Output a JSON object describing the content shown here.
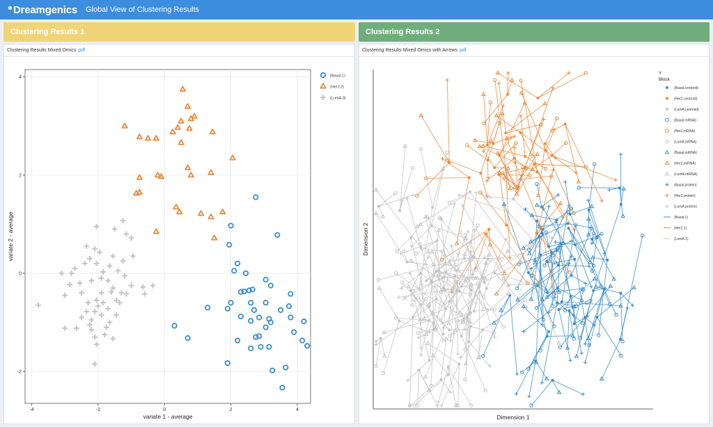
{
  "header": {
    "brand": "Dreamgenics",
    "title": "Global View of Clustering Results"
  },
  "panels": [
    {
      "title": "Clustering Results 1",
      "subtitle": "Clustering Results Mixed Omics",
      "link": "pdf"
    },
    {
      "title": "Clustering Results 2",
      "subtitle": "Clustering Results Mixed Omics with Arrows",
      "link": "pdf"
    }
  ],
  "colors": {
    "basal": "#3a8dc8",
    "her2": "#e8893a",
    "luma": "#c4c4c4",
    "header": "#3c8dde",
    "panel1": "#f0d578",
    "panel2": "#6fae7c"
  },
  "chart_data": [
    {
      "type": "scatter",
      "xlabel": "variate 1 - average",
      "ylabel": "variate 2 - average",
      "xlim": [
        -4.2,
        4.4
      ],
      "ylim": [
        -2.65,
        4.15
      ],
      "xticks": [
        -4,
        -2,
        0,
        2,
        4
      ],
      "yticks": [
        -2,
        0,
        2,
        4
      ],
      "grid": true,
      "legend_position": "right",
      "legend": [
        "(Basal.1)",
        "(Her2.2)",
        "(LumA.3)"
      ],
      "series": [
        {
          "name": "(Basal.1)",
          "marker": "circle",
          "points": [
            [
              2.75,
              1.55
            ],
            [
              2.0,
              0.97
            ],
            [
              3.4,
              0.78
            ],
            [
              1.95,
              0.58
            ],
            [
              2.2,
              0.2
            ],
            [
              2.1,
              0.05
            ],
            [
              2.45,
              0.0
            ],
            [
              3.05,
              -0.13
            ],
            [
              3.2,
              -0.25
            ],
            [
              2.65,
              -0.33
            ],
            [
              2.55,
              -0.35
            ],
            [
              2.4,
              -0.37
            ],
            [
              2.3,
              -0.38
            ],
            [
              3.8,
              -0.42
            ],
            [
              2.0,
              -0.6
            ],
            [
              2.6,
              -0.6
            ],
            [
              3.05,
              -0.6
            ],
            [
              1.3,
              -0.7
            ],
            [
              3.75,
              -0.67
            ],
            [
              1.9,
              -0.72
            ],
            [
              2.7,
              -0.75
            ],
            [
              3.5,
              -0.75
            ],
            [
              2.3,
              -0.88
            ],
            [
              2.85,
              -0.9
            ],
            [
              3.8,
              -0.9
            ],
            [
              3.15,
              -0.93
            ],
            [
              2.6,
              -0.97
            ],
            [
              3.2,
              -1.0
            ],
            [
              4.2,
              -0.98
            ],
            [
              0.3,
              -1.07
            ],
            [
              3.05,
              -1.1
            ],
            [
              3.9,
              -1.2
            ],
            [
              2.85,
              -1.28
            ],
            [
              2.75,
              -1.3
            ],
            [
              0.7,
              -1.32
            ],
            [
              2.2,
              -1.37
            ],
            [
              4.15,
              -1.37
            ],
            [
              4.3,
              -1.48
            ],
            [
              3.15,
              -1.5
            ],
            [
              2.9,
              -1.5
            ],
            [
              2.6,
              -1.53
            ],
            [
              1.9,
              -1.83
            ],
            [
              3.65,
              -1.92
            ],
            [
              3.25,
              -1.98
            ],
            [
              3.55,
              -2.33
            ]
          ]
        },
        {
          "name": "(Her2.2)",
          "marker": "triangle",
          "points": [
            [
              0.55,
              3.75
            ],
            [
              0.7,
              3.4
            ],
            [
              0.9,
              3.2
            ],
            [
              0.5,
              3.1
            ],
            [
              0.8,
              3.15
            ],
            [
              -1.2,
              3.0
            ],
            [
              0.4,
              2.97
            ],
            [
              0.75,
              2.95
            ],
            [
              0.25,
              2.88
            ],
            [
              -0.75,
              2.78
            ],
            [
              -0.5,
              2.75
            ],
            [
              -0.25,
              2.75
            ],
            [
              1.45,
              2.88
            ],
            [
              0.5,
              2.66
            ],
            [
              2.05,
              2.35
            ],
            [
              0.7,
              2.15
            ],
            [
              -0.2,
              2.0
            ],
            [
              0.8,
              2.0
            ],
            [
              -0.1,
              1.97
            ],
            [
              1.4,
              2.05
            ],
            [
              -0.75,
              1.95
            ],
            [
              -0.85,
              1.63
            ],
            [
              -0.75,
              1.65
            ],
            [
              0.35,
              1.35
            ],
            [
              0.45,
              1.25
            ],
            [
              1.1,
              1.22
            ],
            [
              1.75,
              1.25
            ],
            [
              1.4,
              1.15
            ],
            [
              -0.25,
              0.85
            ],
            [
              1.5,
              0.72
            ]
          ]
        },
        {
          "name": "(LumA.3)",
          "marker": "plus",
          "points": [
            [
              -2.05,
              0.95
            ],
            [
              -1.25,
              1.07
            ],
            [
              -1.15,
              0.8
            ],
            [
              -1.5,
              0.9
            ],
            [
              -1.0,
              0.72
            ],
            [
              -2.35,
              0.55
            ],
            [
              -2.1,
              0.5
            ],
            [
              -1.95,
              0.43
            ],
            [
              -2.25,
              0.3
            ],
            [
              -1.55,
              0.35
            ],
            [
              -1.25,
              0.25
            ],
            [
              -0.95,
              0.35
            ],
            [
              -2.4,
              0.2
            ],
            [
              -2.05,
              0.2
            ],
            [
              -1.65,
              0.15
            ],
            [
              -1.85,
              0.03
            ],
            [
              -3.1,
              0.0
            ],
            [
              -2.8,
              0.0
            ],
            [
              -2.7,
              0.1
            ],
            [
              -1.4,
              0.05
            ],
            [
              -1.2,
              -0.05
            ],
            [
              -1.9,
              -0.1
            ],
            [
              -2.2,
              -0.15
            ],
            [
              -1.7,
              -0.15
            ],
            [
              -2.85,
              -0.23
            ],
            [
              -2.55,
              -0.2
            ],
            [
              -1.55,
              -0.3
            ],
            [
              -1.0,
              -0.25
            ],
            [
              -0.65,
              -0.28
            ],
            [
              -0.35,
              -0.25
            ],
            [
              -2.5,
              -0.4
            ],
            [
              -1.9,
              -0.4
            ],
            [
              -1.6,
              -0.38
            ],
            [
              -1.3,
              -0.4
            ],
            [
              -1.15,
              -0.42
            ],
            [
              -0.6,
              -0.42
            ],
            [
              -3.0,
              -0.45
            ],
            [
              -2.05,
              -0.55
            ],
            [
              -2.3,
              -0.6
            ],
            [
              -1.85,
              -0.6
            ],
            [
              -1.45,
              -0.55
            ],
            [
              -1.35,
              -0.6
            ],
            [
              -3.8,
              -0.65
            ],
            [
              -2.0,
              -0.67
            ],
            [
              -1.7,
              -0.72
            ],
            [
              -2.1,
              -0.78
            ],
            [
              -2.35,
              -0.78
            ],
            [
              -1.9,
              -0.85
            ],
            [
              -1.45,
              -0.85
            ],
            [
              -2.5,
              -0.9
            ],
            [
              -2.2,
              -0.95
            ],
            [
              -1.65,
              -1.0
            ],
            [
              -3.0,
              -1.12
            ],
            [
              -2.65,
              -1.12
            ],
            [
              -2.2,
              -1.15
            ],
            [
              -1.75,
              -1.1
            ],
            [
              -2.1,
              -1.3
            ],
            [
              -1.55,
              -1.33
            ],
            [
              -2.05,
              -1.45
            ],
            [
              -2.1,
              -1.85
            ],
            [
              -2.25,
              -1.05
            ],
            [
              -1.8,
              -1.25
            ]
          ]
        }
      ]
    },
    {
      "type": "scatter",
      "xlabel": "Dimension 1",
      "ylabel": "Dimension 2",
      "grid": false,
      "legend_position": "right",
      "legend_title": "Y",
      "legend_subtitle": "Block",
      "legend": [
        "(Basal.centroid)",
        "(Her2.centroid)",
        "(LumA.centroid)",
        "(Basal.mRNA)",
        "(Her2.mRNA)",
        "(LumA.mRNA)",
        "(Basal.miRNA)",
        "(Her2.miRNA)",
        "(LumA.miRNA)",
        "(Basal.protein)",
        "(Her2.protein)",
        "(LumA.protein)",
        "(Basal.1)",
        "(Her2.1)",
        "(LumA.1)"
      ],
      "clusters": [
        {
          "name": "Basal",
          "center": [
            0.7,
            0.36
          ],
          "spread": [
            0.17,
            0.26
          ],
          "n": 45
        },
        {
          "name": "Her2",
          "center": [
            0.5,
            0.69
          ],
          "spread": [
            0.18,
            0.25
          ],
          "n": 30
        },
        {
          "name": "LumA",
          "center": [
            0.25,
            0.35
          ],
          "spread": [
            0.2,
            0.24
          ],
          "n": 62
        }
      ]
    }
  ]
}
